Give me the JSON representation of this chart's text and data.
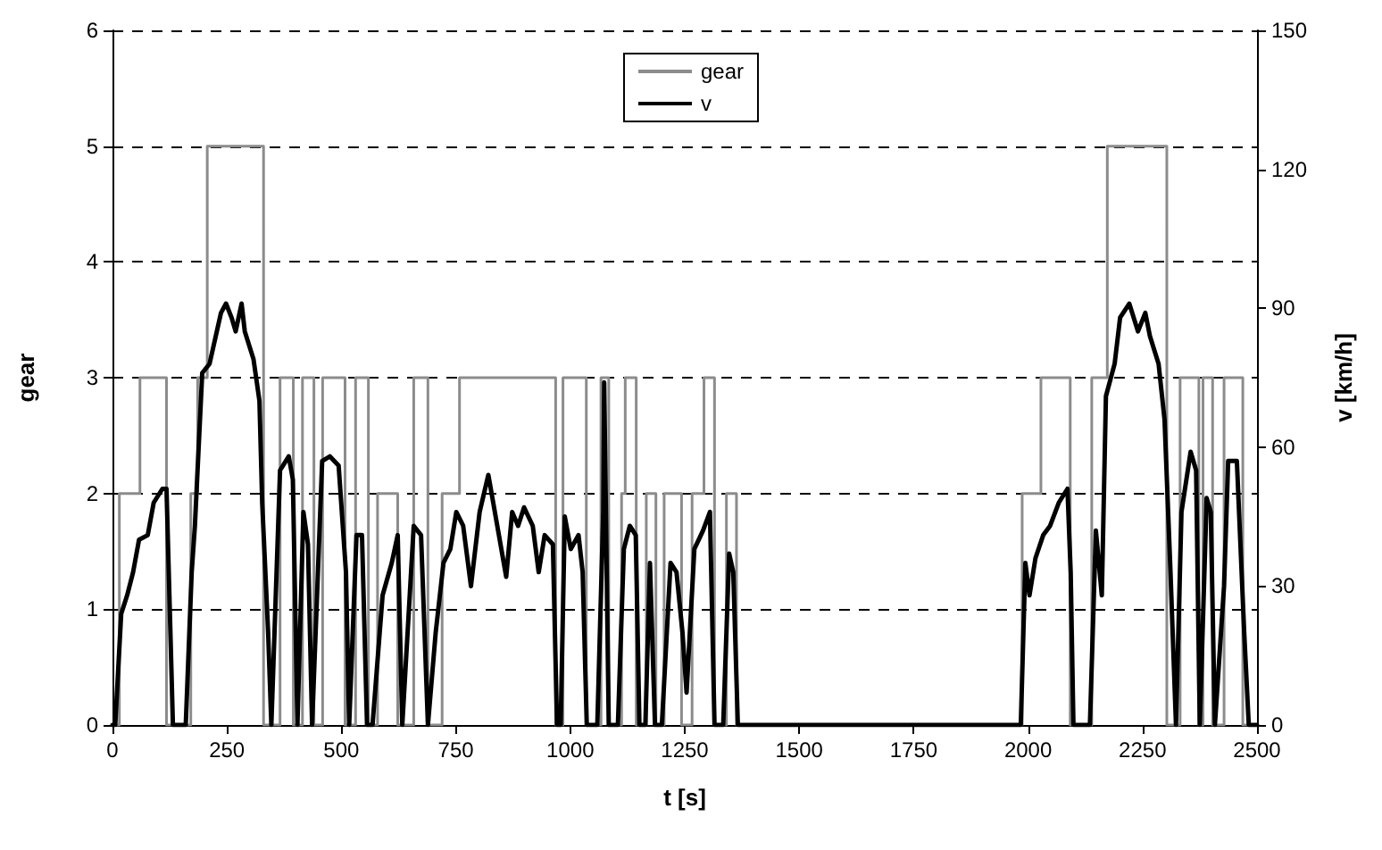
{
  "chart_data": {
    "type": "line",
    "xlabel": "t [s]",
    "ylabel": "gear",
    "y2label": "v [km/h]",
    "xlim": [
      0,
      2500
    ],
    "xticks": [
      0,
      250,
      500,
      750,
      1000,
      1250,
      1500,
      1750,
      2000,
      2250,
      2500
    ],
    "ylim": [
      0,
      6
    ],
    "yticks": [
      0,
      1,
      2,
      3,
      4,
      5,
      6
    ],
    "y2lim": [
      0,
      150
    ],
    "y2ticks": [
      0,
      30,
      60,
      90,
      120,
      150
    ],
    "grid": "y",
    "legend": "top",
    "marker": "none",
    "series": [
      {
        "name": "gear",
        "type": "step",
        "color": "#8c8c8c",
        "x": [
          0,
          15,
          60,
          118,
          171,
          186,
          207,
          330,
          366,
          395,
          415,
          440,
          459,
          508,
          531,
          559,
          579,
          623,
          658,
          689,
          720,
          758,
          968,
          984,
          1035,
          1067,
          1084,
          1112,
          1120,
          1144,
          1166,
          1187,
          1205,
          1243,
          1266,
          1292,
          1315,
          1341,
          1363,
          1987,
          2028,
          2092,
          2139,
          2173,
          2303,
          2332,
          2373,
          2382,
          2403,
          2428,
          2469,
          2500
        ],
        "values": [
          0,
          2,
          3,
          0,
          2,
          3,
          5,
          0,
          3,
          0,
          3,
          0,
          3,
          0,
          3,
          0,
          2,
          0,
          3,
          0,
          2,
          3,
          0,
          3,
          0,
          3,
          0,
          2,
          3,
          0,
          2,
          0,
          2,
          0,
          2,
          3,
          0,
          2,
          0,
          2,
          3,
          0,
          3,
          5,
          0,
          3,
          0,
          3,
          0,
          3,
          0,
          0
        ]
      },
      {
        "name": "v",
        "axis": "y2",
        "color": "#000000",
        "x": [
          0,
          6,
          19,
          32,
          45,
          58,
          77,
          90,
          109,
          118,
          132,
          160,
          173,
          180,
          196,
          212,
          237,
          248,
          260,
          269,
          282,
          289,
          308,
          321,
          327,
          340,
          347,
          366,
          385,
          394,
          404,
          417,
          427,
          436,
          458,
          475,
          494,
          510,
          517,
          533,
          545,
          556,
          568,
          590,
          610,
          623,
          633,
          658,
          674,
          689,
          706,
          723,
          738,
          751,
          766,
          783,
          802,
          821,
          860,
          873,
          886,
          899,
          918,
          931,
          944,
          962,
          971,
          979,
          988,
          1001,
          1018,
          1027,
          1036,
          1059,
          1072,
          1074,
          1084,
          1104,
          1117,
          1130,
          1143,
          1151,
          1164,
          1174,
          1185,
          1200,
          1219,
          1232,
          1245,
          1254,
          1271,
          1290,
          1305,
          1315,
          1334,
          1347,
          1356,
          1366,
          1984,
          1994,
          2003,
          2016,
          2033,
          2048,
          2067,
          2086,
          2093,
          2099,
          2135,
          2148,
          2161,
          2170,
          2189,
          2201,
          2221,
          2240,
          2256,
          2266,
          2285,
          2298,
          2311,
          2323,
          2335,
          2355,
          2367,
          2375,
          2390,
          2399,
          2408,
          2428,
          2437,
          2456,
          2472,
          2482,
          2500
        ],
        "values": [
          0,
          0,
          24,
          28,
          33,
          40,
          41,
          48,
          51,
          51,
          0,
          0,
          33,
          43,
          76,
          78,
          89,
          91,
          88,
          85,
          91,
          85,
          79,
          70,
          48,
          20,
          0,
          55,
          58,
          53,
          0,
          46,
          39,
          0,
          57,
          58,
          56,
          33,
          0,
          41,
          41,
          0,
          0,
          28,
          35,
          41,
          0,
          43,
          41,
          0,
          20,
          35,
          38,
          46,
          43,
          30,
          46,
          54,
          32,
          46,
          43,
          47,
          43,
          33,
          41,
          39,
          0,
          0,
          45,
          38,
          41,
          33,
          0,
          0,
          46,
          74,
          0,
          0,
          38,
          43,
          41,
          0,
          0,
          35,
          0,
          0,
          35,
          33,
          20,
          7,
          38,
          42,
          46,
          0,
          0,
          37,
          33,
          0,
          0,
          35,
          28,
          36,
          41,
          43,
          48,
          51,
          33,
          0,
          0,
          42,
          28,
          71,
          78,
          88,
          91,
          85,
          89,
          84,
          78,
          66,
          33,
          0,
          46,
          59,
          55,
          0,
          49,
          46,
          0,
          30,
          57,
          57,
          20,
          0,
          0
        ]
      }
    ]
  }
}
